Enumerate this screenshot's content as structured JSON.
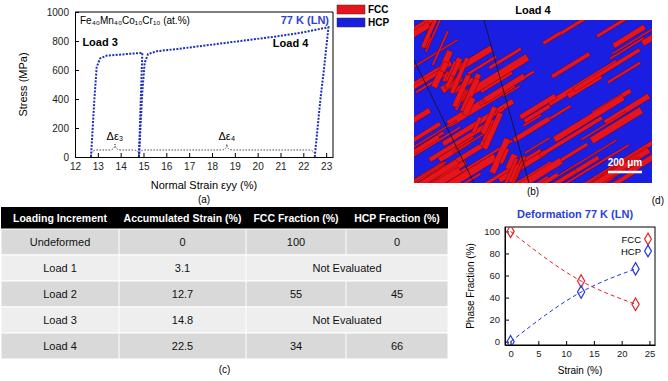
{
  "chart_data": [
    {
      "type": "line",
      "panel_label": "(a)",
      "title": "77 K (LN)",
      "subtitle": "Fe₄₀Mn₄₀Co₁₀Cr₁₀ (at.%)",
      "x_label": "Normal Strain εyy (%)",
      "y_label": "Stress (MPa)",
      "annotations": [
        "Δε₃",
        "Δε₄"
      ],
      "series": [
        {
          "name": "Load 3",
          "color": "#1c2fb8",
          "line_style": "dotted",
          "x": [
            12.7,
            12.85,
            12.95,
            13.1,
            13.4,
            13.9,
            14.4,
            14.95,
            14.88,
            14.8
          ],
          "values": [
            0,
            400,
            620,
            680,
            700,
            705,
            712,
            718,
            400,
            0
          ]
        },
        {
          "name": "Load 4",
          "color": "#1c2fb8",
          "line_style": "dotted",
          "x": [
            14.8,
            14.95,
            15.05,
            15.2,
            15.6,
            16.5,
            18,
            19.5,
            21,
            22,
            23.1,
            22.9,
            22.75,
            22.5
          ],
          "values": [
            0,
            450,
            650,
            710,
            730,
            745,
            775,
            805,
            835,
            860,
            895,
            600,
            400,
            0
          ]
        }
      ],
      "xlim": [
        12,
        23.3
      ],
      "xticks": [
        12,
        13,
        14,
        15,
        16,
        17,
        18,
        19,
        20,
        21,
        22,
        23
      ],
      "ylim": [
        0,
        1000
      ],
      "yticks": [
        0,
        200,
        400,
        600,
        800,
        1000
      ]
    },
    {
      "type": "scatter",
      "panel_label": "(d)",
      "title": "Deformation 77 K (LN)",
      "x_label": "Strain (%)",
      "y_label": "Phase Fraction (%)",
      "x": [
        0,
        12.7,
        22.5
      ],
      "series": [
        {
          "name": "FCC",
          "color": "#e02424",
          "values": [
            100,
            55,
            34
          ],
          "marker": "diamond",
          "line_style": "dashed"
        },
        {
          "name": "HCP",
          "color": "#2432e0",
          "values": [
            0,
            45,
            66
          ],
          "marker": "diamond",
          "line_style": "dashed"
        }
      ],
      "xlim": [
        -1,
        26
      ],
      "xticks": [
        0,
        5,
        10,
        15,
        20,
        25
      ],
      "ylim": [
        -3,
        104
      ],
      "yticks": [
        0,
        20,
        40,
        60,
        80,
        100
      ],
      "legend": "top-right"
    }
  ],
  "phase_map": {
    "label": "(b)",
    "title": "Load 4",
    "legend": [
      {
        "name": "FCC",
        "color": "#e8141c"
      },
      {
        "name": "HCP",
        "color": "#1a1ee0"
      }
    ],
    "scale_bar": "200 μm"
  },
  "table": {
    "label": "(c)",
    "columns": [
      "Loading Increment",
      "Accumulated Strain (%)",
      "FCC Fraction (%)",
      "HCP Fraction (%)"
    ],
    "rows": [
      [
        "Undeformed",
        0,
        100,
        0
      ],
      [
        "Load 1",
        3.1,
        "Not Evaluated"
      ],
      [
        "Load 2",
        12.7,
        55,
        45
      ],
      [
        "Load 3",
        14.8,
        "Not Evaluated"
      ],
      [
        "Load 4",
        22.5,
        34,
        66
      ]
    ]
  }
}
